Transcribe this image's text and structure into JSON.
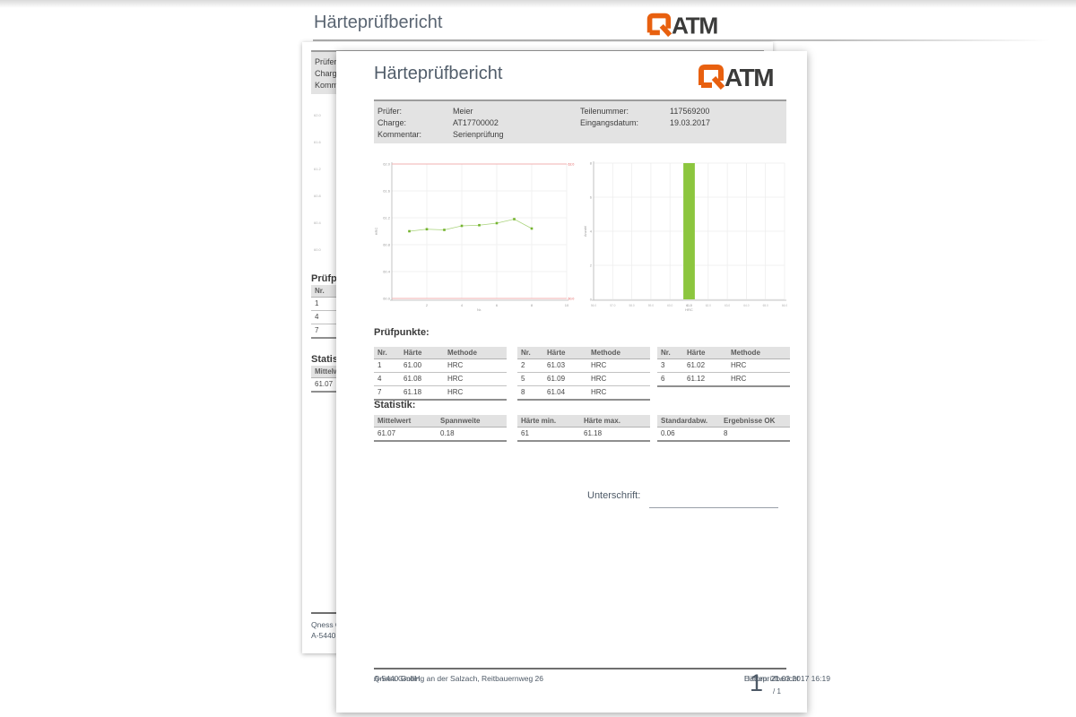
{
  "preview_header": {
    "title": "Härteprüfbericht"
  },
  "logo": {
    "name": "QATM",
    "text": "ATM",
    "orange": "#e8600f",
    "dark": "#3b3b3a"
  },
  "report": {
    "title": "Härteprüfbericht",
    "info": {
      "left": [
        {
          "label": "Prüfer:",
          "value": "Meier"
        },
        {
          "label": "Charge:",
          "value": "AT17700002"
        },
        {
          "label": "Kommentar:",
          "value": "Serienprüfung"
        }
      ],
      "right": [
        {
          "label": "Teilenummer:",
          "value": "117569200"
        },
        {
          "label": "Eingangsdatum:",
          "value": "19.03.2017"
        }
      ]
    },
    "pruefpunkte": {
      "heading": "Prüfpunkte:",
      "columns": [
        "Nr.",
        "Härte",
        "Methode"
      ],
      "tables": [
        [
          [
            "1",
            "61.00",
            "HRC"
          ],
          [
            "4",
            "61.08",
            "HRC"
          ],
          [
            "7",
            "61.18",
            "HRC"
          ]
        ],
        [
          [
            "2",
            "61.03",
            "HRC"
          ],
          [
            "5",
            "61.09",
            "HRC"
          ],
          [
            "8",
            "61.04",
            "HRC"
          ]
        ],
        [
          [
            "3",
            "61.02",
            "HRC"
          ],
          [
            "6",
            "61.12",
            "HRC"
          ]
        ]
      ]
    },
    "statistik": {
      "heading": "Statistik:",
      "tables": [
        {
          "columns": [
            "Mittelwert",
            "Spannweite"
          ],
          "values": [
            "61.07",
            "0.18"
          ]
        },
        {
          "columns": [
            "Härte min.",
            "Härte max."
          ],
          "values": [
            "61",
            "61.18"
          ]
        },
        {
          "columns": [
            "Standardabw.",
            "Ergebnisse OK"
          ],
          "values": [
            "0.06",
            "8"
          ]
        }
      ]
    },
    "unterschrift_label": "Unterschrift:",
    "footer": {
      "company": "Qness GmbH",
      "address": "A-5440 Golling an der Salzach, Reitbauernweg 26",
      "datum": "Datum: 21.03.2017 16:19",
      "doc_name": "Härteprüfbericht",
      "page_number": "1",
      "page_total": "/ 1"
    }
  },
  "chart_data": [
    {
      "type": "line",
      "title": "",
      "xlabel": "Nr.",
      "ylabel": "HRC",
      "x": [
        1,
        2,
        3,
        4,
        5,
        6,
        7,
        8
      ],
      "values": [
        61.0,
        61.03,
        61.02,
        61.08,
        61.09,
        61.12,
        61.18,
        61.04
      ],
      "xlim": [
        0,
        10
      ],
      "ylim": [
        60,
        62
      ],
      "xticks": [
        2,
        4,
        6,
        8,
        10
      ],
      "yticks": [
        62.0,
        61.6,
        61.2,
        60.8,
        60.4,
        60.0
      ],
      "upper_limit": 62.0,
      "lower_limit": 60.0,
      "upper_limit_label": "62.0",
      "lower_limit_label": "60.0",
      "grid": true,
      "legend": "none",
      "line_color": "#a9d37b",
      "marker_color": "#74b42e",
      "limit_color": "#f2b1b1",
      "limit_label_color": "#e05555"
    },
    {
      "type": "histogram",
      "title": "",
      "xlabel": "HRC",
      "ylabel": "Anzahl",
      "bins": [
        {
          "start": 60.7,
          "end": 61.3,
          "count": 8
        }
      ],
      "xlim": [
        56,
        66
      ],
      "ylim": [
        0,
        8
      ],
      "xticks": [
        56,
        57,
        58,
        59,
        60,
        61,
        62,
        63,
        64,
        65,
        66
      ],
      "yticks": [
        0,
        2,
        4,
        6,
        8
      ],
      "highlight_xtick": 61,
      "grid": true,
      "legend": "none",
      "bar_color": "#8cc63e"
    }
  ]
}
